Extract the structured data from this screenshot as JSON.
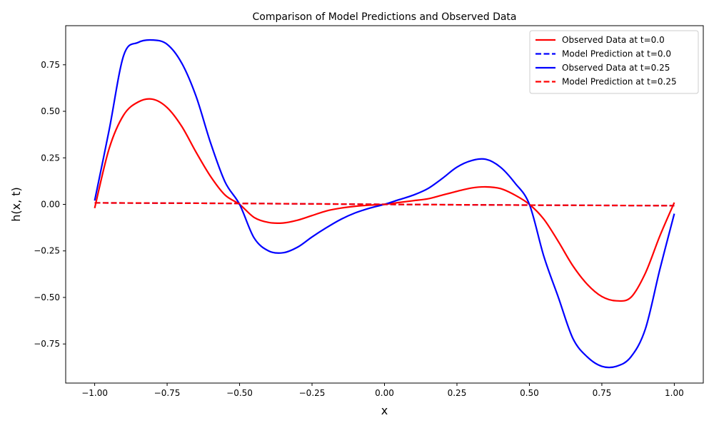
{
  "chart_data": {
    "type": "line",
    "title": "Comparison of Model Predictions and Observed Data",
    "xlabel": "x",
    "ylabel": "h(x, t)",
    "xlim": [
      -1.1,
      1.1
    ],
    "ylim": [
      -0.96,
      0.96
    ],
    "xticks": [
      -1.0,
      -0.75,
      -0.5,
      -0.25,
      0.0,
      0.25,
      0.5,
      0.75,
      1.0
    ],
    "xtick_labels": [
      "−1.00",
      "−0.75",
      "−0.50",
      "−0.25",
      "0.00",
      "0.25",
      "0.50",
      "0.75",
      "1.00"
    ],
    "yticks": [
      -0.75,
      -0.5,
      -0.25,
      0.0,
      0.25,
      0.5,
      0.75
    ],
    "ytick_labels": [
      "−0.75",
      "−0.50",
      "−0.25",
      "0.00",
      "0.25",
      "0.50",
      "0.75"
    ],
    "grid": false,
    "legend_position": "top-right",
    "series": [
      {
        "name": "Observed Data at t=0.0",
        "color": "#ff0000",
        "style": "solid",
        "x": [
          -1.0,
          -0.95,
          -0.9,
          -0.85,
          -0.8,
          -0.75,
          -0.7,
          -0.65,
          -0.6,
          -0.55,
          -0.5,
          -0.45,
          -0.4,
          -0.35,
          -0.3,
          -0.25,
          -0.2,
          -0.15,
          -0.1,
          -0.05,
          0.0,
          0.05,
          0.1,
          0.15,
          0.2,
          0.25,
          0.3,
          0.35,
          0.4,
          0.45,
          0.5,
          0.55,
          0.6,
          0.65,
          0.7,
          0.75,
          0.8,
          0.85,
          0.9,
          0.95,
          1.0
        ],
        "y": [
          -0.02,
          0.3,
          0.48,
          0.55,
          0.565,
          0.52,
          0.42,
          0.28,
          0.15,
          0.05,
          0.0,
          -0.07,
          -0.097,
          -0.1,
          -0.085,
          -0.06,
          -0.035,
          -0.02,
          -0.01,
          -0.004,
          0.0,
          0.01,
          0.02,
          0.03,
          0.05,
          0.07,
          0.088,
          0.094,
          0.085,
          0.05,
          0.0,
          -0.08,
          -0.2,
          -0.33,
          -0.43,
          -0.495,
          -0.518,
          -0.5,
          -0.37,
          -0.17,
          0.01
        ]
      },
      {
        "name": "Model Prediction at t=0.0",
        "color": "#0000ff",
        "style": "dashed",
        "x": [
          -1.0,
          -0.5,
          0.0,
          0.5,
          1.0
        ],
        "y": [
          0.008,
          0.005,
          0.0,
          -0.004,
          -0.007
        ]
      },
      {
        "name": "Observed Data at t=0.25",
        "color": "#0000ff",
        "style": "solid",
        "x": [
          -1.0,
          -0.95,
          -0.9,
          -0.85,
          -0.8,
          -0.75,
          -0.7,
          -0.65,
          -0.6,
          -0.55,
          -0.5,
          -0.45,
          -0.4,
          -0.35,
          -0.3,
          -0.25,
          -0.2,
          -0.15,
          -0.1,
          -0.05,
          0.0,
          0.05,
          0.1,
          0.15,
          0.2,
          0.25,
          0.3,
          0.35,
          0.4,
          0.45,
          0.5,
          0.55,
          0.6,
          0.65,
          0.7,
          0.75,
          0.8,
          0.85,
          0.9,
          0.95,
          1.0
        ],
        "y": [
          0.02,
          0.4,
          0.8,
          0.87,
          0.883,
          0.86,
          0.76,
          0.58,
          0.33,
          0.12,
          0.0,
          -0.18,
          -0.25,
          -0.26,
          -0.23,
          -0.175,
          -0.125,
          -0.08,
          -0.045,
          -0.02,
          0.0,
          0.025,
          0.05,
          0.085,
          0.14,
          0.2,
          0.235,
          0.242,
          0.2,
          0.115,
          0.0,
          -0.28,
          -0.5,
          -0.72,
          -0.82,
          -0.87,
          -0.87,
          -0.82,
          -0.67,
          -0.35,
          -0.05
        ]
      },
      {
        "name": "Model Prediction at t=0.25",
        "color": "#ff0000",
        "style": "dashed",
        "x": [
          -1.0,
          -0.5,
          0.0,
          0.5,
          1.0
        ],
        "y": [
          0.008,
          0.005,
          0.0,
          -0.004,
          -0.007
        ]
      }
    ]
  }
}
